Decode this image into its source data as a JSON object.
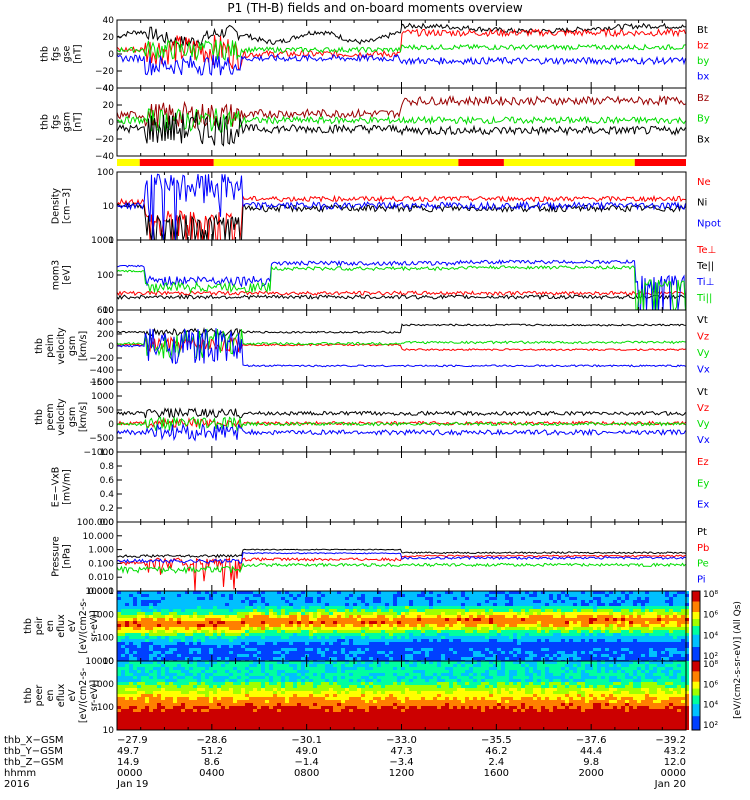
{
  "title": "P1 (TH-B) fields and on-board moments overview",
  "colors": {
    "black": "#000000",
    "red": "#ff0000",
    "green": "#00dd00",
    "blue": "#0000ff",
    "darkred": "#990000",
    "yellow": "#ffff00"
  },
  "mode_bar": [
    {
      "from": 0.0,
      "to": 0.04,
      "color": "yellow"
    },
    {
      "from": 0.04,
      "to": 0.17,
      "color": "red"
    },
    {
      "from": 0.17,
      "to": 0.6,
      "color": "yellow"
    },
    {
      "from": 0.6,
      "to": 0.68,
      "color": "red"
    },
    {
      "from": 0.68,
      "to": 0.91,
      "color": "yellow"
    },
    {
      "from": 0.91,
      "to": 1.0,
      "color": "red"
    }
  ],
  "chart_data": [
    {
      "type": "line",
      "ylabel": [
        "thb",
        "fgs",
        "gse",
        "[nT]"
      ],
      "ylim": [
        -40,
        40
      ],
      "yticks": [
        "40",
        "20",
        "0",
        "−20",
        "−40"
      ],
      "series": [
        {
          "name": "Bt",
          "color": "black"
        },
        {
          "name": "bz",
          "color": "red"
        },
        {
          "name": "by",
          "color": "green"
        },
        {
          "name": "bx",
          "color": "blue"
        }
      ]
    },
    {
      "type": "line",
      "ylabel": [
        "thb",
        "fgs",
        "gsm",
        "[nT]"
      ],
      "ylim": [
        -40,
        40
      ],
      "yticks": [
        "40",
        "20",
        "0",
        "−20",
        "−40"
      ],
      "series": [
        {
          "name": "Bz",
          "color": "darkred"
        },
        {
          "name": "By",
          "color": "green"
        },
        {
          "name": "Bx",
          "color": "black"
        }
      ]
    },
    {
      "type": "line",
      "ylabel": [
        "Density",
        "[cm−3]"
      ],
      "log": true,
      "ylim": [
        1,
        200
      ],
      "yticks": [
        "100",
        "10",
        "1"
      ],
      "series": [
        {
          "name": "Ne",
          "color": "red"
        },
        {
          "name": "Ni",
          "color": "black"
        },
        {
          "name": "Npot",
          "color": "blue"
        }
      ]
    },
    {
      "type": "line",
      "ylabel": [
        "mom3",
        "[eV]"
      ],
      "log": true,
      "ylim": [
        5,
        8000
      ],
      "yticks": [
        "1000",
        "100",
        "10"
      ],
      "series": [
        {
          "name": "Te⊥",
          "color": "red"
        },
        {
          "name": "Te||",
          "color": "black"
        },
        {
          "name": "Ti⊥",
          "color": "blue"
        },
        {
          "name": "Ti||",
          "color": "green"
        }
      ]
    },
    {
      "type": "line",
      "ylabel": [
        "thb",
        "peim",
        "velocity",
        "gsm",
        "[km/s]"
      ],
      "ylim": [
        -600,
        600
      ],
      "yticks": [
        "600",
        "400",
        "200",
        "0",
        "−200",
        "−400",
        "−600"
      ],
      "series": [
        {
          "name": "Vt",
          "color": "black"
        },
        {
          "name": "Vz",
          "color": "red"
        },
        {
          "name": "Vy",
          "color": "green"
        },
        {
          "name": "Vx",
          "color": "blue"
        }
      ]
    },
    {
      "type": "line",
      "ylabel": [
        "thb",
        "peem",
        "velocity",
        "gsm",
        "[km/s]"
      ],
      "ylim": [
        -1000,
        1500
      ],
      "yticks": [
        "1500",
        "1000",
        "500",
        "0",
        "−500",
        "−1000"
      ],
      "series": [
        {
          "name": "Vt",
          "color": "black"
        },
        {
          "name": "Vz",
          "color": "red"
        },
        {
          "name": "Vy",
          "color": "green"
        },
        {
          "name": "Vx",
          "color": "blue"
        }
      ]
    },
    {
      "type": "line",
      "ylabel": [
        "E=−VxB",
        "[mV/m]"
      ],
      "ylim": [
        0,
        1
      ],
      "yticks": [
        "1.0",
        "0.8",
        "0.6",
        "0.4",
        "0.2",
        "0.0"
      ],
      "series": [
        {
          "name": "Ez",
          "color": "red"
        },
        {
          "name": "Ey",
          "color": "green"
        },
        {
          "name": "Ex",
          "color": "blue"
        }
      ]
    },
    {
      "type": "line",
      "ylabel": [
        "Pressure",
        "[nPa]"
      ],
      "log": true,
      "ylim": [
        0.001,
        100
      ],
      "yticks": [
        "100.000",
        "10.000",
        "1.000",
        "0.100",
        "0.010",
        "0.001"
      ],
      "series": [
        {
          "name": "Pt",
          "color": "black"
        },
        {
          "name": "Pb",
          "color": "red"
        },
        {
          "name": "Pe",
          "color": "green"
        },
        {
          "name": "Pi",
          "color": "blue"
        }
      ]
    },
    {
      "type": "heatmap",
      "ylabel": [
        "thb",
        "peir",
        "en",
        "eflux",
        "eV",
        "[eV/(cm2-s-",
        "sr-eV)]"
      ],
      "log": true,
      "ylim": [
        5,
        20000
      ],
      "yticks": [
        "10000",
        "1000",
        "100",
        "10"
      ]
    },
    {
      "type": "heatmap",
      "ylabel": [
        "thb",
        "peer",
        "en",
        "eflux",
        "eV",
        "[eV/(cm2-s-",
        "sr-eV)]"
      ],
      "log": true,
      "ylim": [
        5,
        20000
      ],
      "yticks": [
        "10000",
        "1000",
        "100",
        "10"
      ]
    }
  ],
  "colorbars": [
    {
      "ticks": [
        "10⁸",
        "10⁶",
        "10⁴",
        "10²"
      ]
    },
    {
      "ticks": [
        "10⁸",
        "10⁶",
        "10⁴",
        "10²"
      ]
    }
  ],
  "colorbar_label": "[eV/(cm2-s-sr-eV)] (All Qs)",
  "ephemeris": {
    "rows": [
      {
        "label": "thb_X−GSM",
        "values": [
          "−27.9",
          "−28.6",
          "−30.1",
          "−33.0",
          "−35.5",
          "−37.6",
          "−39.2"
        ]
      },
      {
        "label": "thb_Y−GSM",
        "values": [
          "49.7",
          "51.2",
          "49.0",
          "47.3",
          "46.2",
          "44.4",
          "43.2"
        ]
      },
      {
        "label": "thb_Z−GSM",
        "values": [
          "14.9",
          "8.6",
          "−1.4",
          "−3.4",
          "2.4",
          "9.8",
          "12.0"
        ]
      },
      {
        "label": "hhmm",
        "values": [
          "0000",
          "0400",
          "0800",
          "1200",
          "1600",
          "2000",
          "0000"
        ]
      },
      {
        "label": "2016",
        "values": [
          "Jan 19",
          "",
          "",
          "",
          "",
          "",
          "Jan 20"
        ]
      }
    ]
  }
}
